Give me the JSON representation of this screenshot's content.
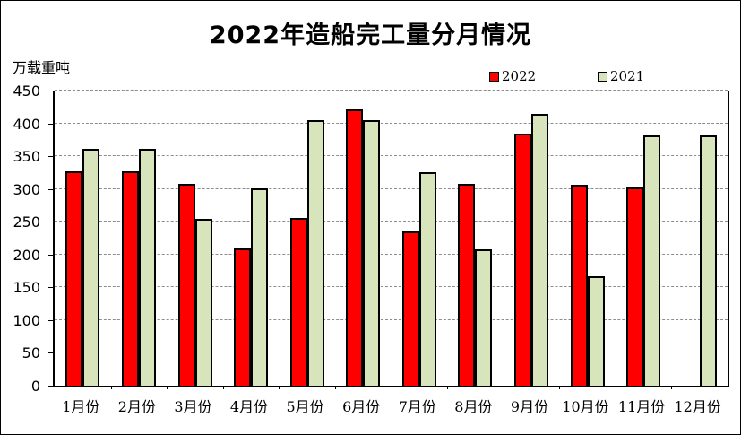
{
  "title": "2022年造船完工量分月情况",
  "unit_label": "万载重吨",
  "legend": [
    {
      "label": "2022",
      "color": "#ff0000"
    },
    {
      "label": "2021",
      "color": "#d8e4bc"
    }
  ],
  "colors": {
    "series_2022": "#ff0000",
    "series_2021": "#d8e4bc",
    "bar_border": "#000000",
    "gridline": "#8c8c8c",
    "axis": "#000000",
    "text": "#000000",
    "background": "#ffffff"
  },
  "y_axis": {
    "tick_labels": [
      "450",
      "400",
      "350",
      "300",
      "250",
      "200",
      "150",
      "100",
      "50",
      "0"
    ]
  },
  "chart_data": {
    "type": "bar",
    "title": "2022年造船完工量分月情况",
    "ylabel": "万载重吨",
    "categories": [
      "1月份",
      "2月份",
      "3月份",
      "4月份",
      "5月份",
      "6月份",
      "7月份",
      "8月份",
      "9月份",
      "10月份",
      "11月份",
      "12月份"
    ],
    "series": [
      {
        "name": "2022",
        "color": "#ff0000",
        "values": [
          327,
          327,
          308,
          210,
          256,
          422,
          236,
          308,
          385,
          307,
          303,
          null
        ]
      },
      {
        "name": "2021",
        "color": "#d8e4bc",
        "values": [
          361,
          361,
          255,
          301,
          405,
          405,
          326,
          208,
          414,
          167,
          381,
          382
        ]
      }
    ],
    "ylim": [
      0,
      450
    ],
    "ytick_step": 50,
    "grid": "horizontal-dashed",
    "legend_position": "top"
  }
}
